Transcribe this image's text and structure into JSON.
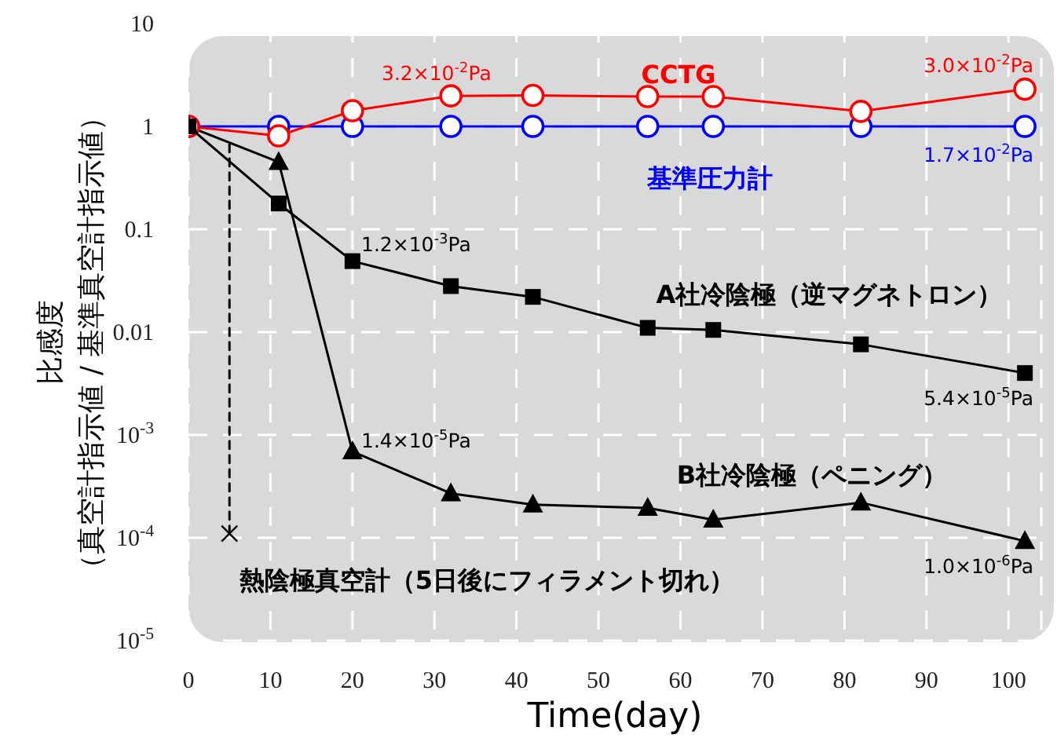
{
  "chart_data": {
    "type": "line",
    "xlabel": "Time(day)",
    "ylabel": "比感度（真空計指示値 / 基準真空計指示値）",
    "log": "y",
    "grid": true,
    "legend": false,
    "xlim": [
      0,
      104
    ],
    "xticks": [
      0,
      10,
      20,
      30,
      40,
      50,
      60,
      70,
      80,
      90,
      100
    ],
    "ylim": [
      1e-05,
      10
    ],
    "yticks": [
      {
        "value": 1e-05,
        "label": "10$^{-5}$"
      },
      {
        "value": 0.0001,
        "label": "10$^{-4}$"
      },
      {
        "value": 0.001,
        "label": "10$^{-3}$"
      },
      0.01,
      0.1,
      1,
      10
    ],
    "series": [
      {
        "name": "基準圧力計",
        "color": "#0000ff",
        "marker": "circle",
        "x": [
          0,
          11,
          20,
          32,
          42,
          56,
          64,
          82,
          102
        ],
        "values": [
          1,
          1,
          1,
          1,
          1,
          1,
          1,
          1,
          1
        ]
      },
      {
        "name": "CCTG",
        "color": "#ff0000",
        "marker": "circle",
        "x": [
          0,
          11,
          20,
          32,
          42,
          56,
          64,
          82,
          102
        ],
        "values": [
          1,
          0.81,
          1.42,
          1.98,
          2.0,
          1.95,
          1.95,
          1.4,
          2.3
        ]
      },
      {
        "name": "A社冷陰極（逆マグネトロン）",
        "color": "#000000",
        "marker": "square",
        "x": [
          0,
          11,
          20,
          32,
          42,
          56,
          64,
          82,
          102
        ],
        "values": [
          1,
          0.178,
          0.049,
          0.028,
          0.022,
          0.011,
          0.0105,
          0.0076,
          0.004
        ]
      },
      {
        "name": "B社冷陰極（ペニング）",
        "color": "#000000",
        "marker": "triangle",
        "x": [
          0,
          11,
          20,
          32,
          42,
          56,
          64,
          82,
          102
        ],
        "values": [
          1,
          0.45,
          0.00069,
          0.00027,
          0.00021,
          0.000195,
          0.00015,
          0.00022,
          9.3e-05
        ]
      },
      {
        "type": "line",
        "color": "#000000",
        "line_style": "dashed",
        "marker": "none",
        "x": [
          5,
          5
        ],
        "values": [
          0.67,
          0.00011
        ]
      },
      {
        "type": "scatter",
        "name": "熱陰極真空計（5日後にフィラメント切れ）",
        "color": "#000000",
        "marker": "cross",
        "x": [
          5
        ],
        "values": [
          0.00011
        ]
      }
    ],
    "annotations": [
      "3.2×10$^{-2}$Pa",
      "3.0×10$^{-2}$Pa",
      "1.7×10$^{-2}$Pa",
      "1.2×10$^{-3}$Pa",
      "5.4×10$^{-5}$Pa",
      "1.4×10$^{-5}$Pa",
      "1.0×10$^{-6}$Pa"
    ]
  }
}
